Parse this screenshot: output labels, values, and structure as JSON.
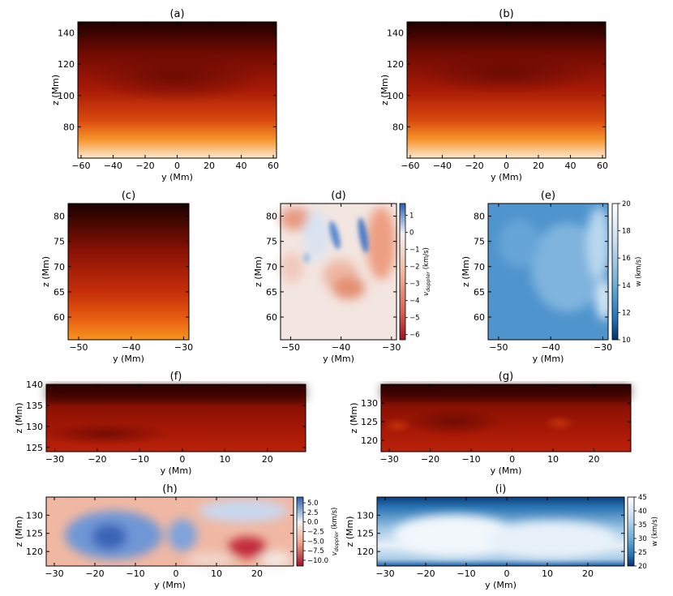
{
  "figure": {
    "panels": [
      "(a)",
      "(b)",
      "(c)",
      "(d)",
      "(e)",
      "(f)",
      "(g)",
      "(h)",
      "(i)"
    ]
  },
  "colors": {
    "heat_top": "#1a0000",
    "heat_mid": "#9a1305",
    "heat_low": "#ee6a12",
    "heat_bottom": "#fde7cc",
    "doppler_red": "#b2182b",
    "doppler_white": "#f7f7f7",
    "doppler_blue": "#2166ac",
    "blues_dark": "#08306b",
    "blues_mid": "#4292c6",
    "blues_light": "#ffffff"
  },
  "chart_data": [
    {
      "id": "a",
      "title": "(a)",
      "type": "heatmap",
      "colormap": "heat",
      "xlabel": "y (Mm)",
      "ylabel": "z (Mm)",
      "xlim": [
        -62,
        62
      ],
      "ylim": [
        60,
        147
      ],
      "xticks": [
        -60,
        -40,
        -20,
        0,
        20,
        40,
        60
      ],
      "yticks": [
        80,
        100,
        120,
        140
      ]
    },
    {
      "id": "b",
      "title": "(b)",
      "type": "heatmap",
      "colormap": "heat",
      "xlabel": "y (Mm)",
      "ylabel": "z (Mm)",
      "xlim": [
        -62,
        62
      ],
      "ylim": [
        60,
        147
      ],
      "xticks": [
        -60,
        -40,
        -20,
        0,
        20,
        40,
        60
      ],
      "yticks": [
        80,
        100,
        120,
        140
      ]
    },
    {
      "id": "c",
      "title": "(c)",
      "type": "heatmap",
      "colormap": "heat",
      "xlabel": "y (Mm)",
      "ylabel": "z (Mm)",
      "xlim": [
        -52,
        -29
      ],
      "ylim": [
        55.5,
        82.5
      ],
      "xticks": [
        -50,
        -40,
        -30
      ],
      "yticks": [
        60,
        65,
        70,
        75,
        80
      ]
    },
    {
      "id": "d",
      "title": "(d)",
      "type": "heatmap",
      "colormap": "doppler",
      "xlabel": "y (Mm)",
      "ylabel": "z (Mm)",
      "xlim": [
        -52,
        -29
      ],
      "ylim": [
        55.5,
        82.5
      ],
      "xticks": [
        -50,
        -40,
        -30
      ],
      "yticks": [
        60,
        65,
        70,
        75,
        80
      ],
      "colorbar": {
        "label_main": "v",
        "label_sub": "doppler",
        "label_unit": " (km/s)",
        "range": [
          -6.3,
          1.7
        ],
        "ticks": [
          1,
          0,
          -1,
          -2,
          -3,
          -4,
          -5,
          -6
        ]
      }
    },
    {
      "id": "e",
      "title": "(e)",
      "type": "heatmap",
      "colormap": "blues",
      "xlabel": "y (Mm)",
      "ylabel": "z (Mm)",
      "xlim": [
        -52,
        -29
      ],
      "ylim": [
        55.5,
        82.5
      ],
      "xticks": [
        -50,
        -40,
        -30
      ],
      "yticks": [
        60,
        65,
        70,
        75,
        80
      ],
      "colorbar": {
        "label_main": "w (km/s)",
        "label_sub": "",
        "label_unit": "",
        "range": [
          10,
          20
        ],
        "ticks": [
          20,
          18,
          16,
          14,
          12,
          10
        ]
      }
    },
    {
      "id": "f",
      "title": "(f)",
      "type": "heatmap",
      "colormap": "heat",
      "xlabel": "y (Mm)",
      "ylabel": "z (Mm)",
      "xlim": [
        -32,
        29
      ],
      "ylim": [
        124,
        140
      ],
      "xticks": [
        -30,
        -20,
        -10,
        0,
        10,
        20
      ],
      "yticks": [
        125,
        130,
        135,
        140
      ]
    },
    {
      "id": "g",
      "title": "(g)",
      "type": "heatmap",
      "colormap": "heat",
      "xlabel": "y (Mm)",
      "ylabel": "z (Mm)",
      "xlim": [
        -32,
        29
      ],
      "ylim": [
        117,
        135
      ],
      "xticks": [
        -30,
        -20,
        -10,
        0,
        10,
        20
      ],
      "yticks": [
        120,
        125,
        130
      ]
    },
    {
      "id": "h",
      "title": "(h)",
      "type": "heatmap",
      "colormap": "doppler",
      "xlabel": "y (Mm)",
      "ylabel": "z (Mm)",
      "xlim": [
        -32,
        29
      ],
      "ylim": [
        116,
        135
      ],
      "xticks": [
        -30,
        -20,
        -10,
        0,
        10,
        20
      ],
      "yticks": [
        120,
        125,
        130
      ],
      "colorbar": {
        "label_main": "v",
        "label_sub": "doppler",
        "label_unit": " (km/s)",
        "range": [
          -11.5,
          6.5
        ],
        "ticks": [
          "5.0",
          "2.5",
          "0.0",
          "−2.5",
          "−5.0",
          "−7.5",
          "−10.0"
        ],
        "tick_values": [
          5,
          2.5,
          0,
          -2.5,
          -5,
          -7.5,
          -10
        ]
      }
    },
    {
      "id": "i",
      "title": "(i)",
      "type": "heatmap",
      "colormap": "blues",
      "xlabel": "y (Mm)",
      "ylabel": "z (Mm)",
      "xlim": [
        -32,
        29
      ],
      "ylim": [
        116,
        135
      ],
      "xticks": [
        -30,
        -20,
        -10,
        0,
        10,
        20
      ],
      "yticks": [
        120,
        125,
        130
      ],
      "colorbar": {
        "label_main": "w (km/s)",
        "label_sub": "",
        "label_unit": "",
        "range": [
          20,
          45
        ],
        "ticks": [
          45,
          40,
          35,
          30,
          25,
          20
        ]
      }
    }
  ]
}
